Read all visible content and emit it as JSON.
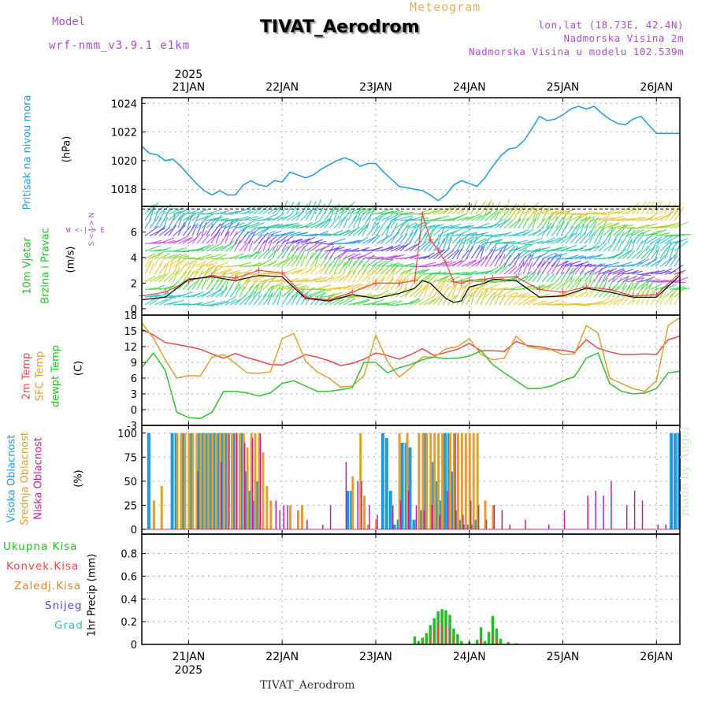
{
  "header": {
    "model_label": "Model",
    "model_name": "wrf-nmm_v3.9.1 e1km",
    "meteogram_label": "Meteogram",
    "title": "TIVAT_Aerodrom",
    "lonlat": "lon,lat (18.73E, 42.4N)",
    "elev": "Nadmorska Visina 2m",
    "elev_model": "Nadmorska Visina u modelu 102.539m"
  },
  "footer": {
    "title": "TIVAT_Aerodrom",
    "made_by": "made by Angel"
  },
  "days": [
    "21JAN",
    "22JAN",
    "23JAN",
    "24JAN",
    "25JAN",
    "26JAN"
  ],
  "year": "2025",
  "panel_labels": {
    "pressure": [
      "Pritisak na nivou mora",
      "(hPa)"
    ],
    "wind": [
      "10m Vjetar",
      "Brzina i Pravac",
      "(m/s)"
    ],
    "compass": "W <-|-> E",
    "compass_ns": "S <-|-> N",
    "temp": [
      "2m Temp",
      "SFC Temp",
      "dewpt Temp",
      "(C)"
    ],
    "cloud": [
      "Visoka Oblacnost",
      "Srednja Oblacnost",
      "Niska Oblacnost",
      "(%)"
    ],
    "precip_unit": "1hr Precip (mm)",
    "precip_legend": [
      "Ukupna Kisa",
      "Konvek.Kisa",
      "Zaledj.Kisa",
      "Snijeg",
      "Grad"
    ]
  },
  "colors": {
    "pressure": "#1e9be0",
    "temp2m": "#e84848",
    "sfc": "#e0a030",
    "dewpt": "#30c030",
    "cloud_high": "#1e9be0",
    "cloud_mid": "#e0a030",
    "cloud_low": "#c020a0",
    "rain_total": "#22c022",
    "rain_conv": "#e84848",
    "rain_frz": "#f07a2a",
    "snow": "#4a4ae0",
    "hail": "#30c0c0",
    "label_purple": "#b04bd6"
  },
  "chart_data": [
    {
      "type": "line",
      "name": "pressure",
      "ylabel": "(hPa)",
      "ylim": [
        1016.8,
        1024.4
      ],
      "yticks": [
        1018,
        1020,
        1022,
        1024
      ],
      "xlim": [
        0,
        138
      ],
      "x_unit": "hours from 2025-01-20 12 UTC",
      "series": [
        {
          "name": "Pritisak na nivou mora",
          "x": [
            0,
            2,
            4,
            6,
            8,
            10,
            12,
            14,
            16,
            18,
            20,
            22,
            24,
            26,
            28,
            30,
            32,
            34,
            36,
            38,
            40,
            42,
            44,
            46,
            48,
            50,
            52,
            54,
            56,
            58,
            60,
            62,
            64,
            66,
            68,
            70,
            72,
            74,
            76,
            78,
            80,
            82,
            84,
            86,
            88,
            90,
            92,
            94,
            96,
            98,
            100,
            102,
            104,
            106,
            108,
            110,
            112,
            114,
            116,
            118,
            120,
            122,
            124,
            126,
            128,
            130,
            132,
            134,
            136,
            138
          ],
          "values": [
            1021.0,
            1020.5,
            1020.4,
            1020.0,
            1020.1,
            1019.6,
            1019.0,
            1018.4,
            1017.9,
            1017.6,
            1017.9,
            1017.6,
            1017.6,
            1018.3,
            1018.6,
            1018.3,
            1018.2,
            1018.6,
            1018.5,
            1019.2,
            1019.0,
            1018.8,
            1019.0,
            1019.4,
            1019.7,
            1020.0,
            1020.2,
            1020.0,
            1019.6,
            1019.8,
            1019.8,
            1019.2,
            1018.7,
            1018.2,
            1018.1,
            1018.0,
            1017.9,
            1017.6,
            1017.2,
            1017.6,
            1018.3,
            1018.6,
            1018.4,
            1018.2,
            1018.8,
            1019.6,
            1020.3,
            1020.8,
            1020.9,
            1021.4,
            1022.2,
            1023.1,
            1022.8,
            1022.9,
            1023.2,
            1023.6,
            1023.8,
            1023.6,
            1023.8,
            1023.3,
            1022.9,
            1022.6,
            1022.5,
            1022.9,
            1023.1,
            1022.5,
            1021.9,
            1021.9,
            1021.9,
            1021.9
          ]
        }
      ]
    },
    {
      "type": "line",
      "name": "wind",
      "ylabel": "(m/s)",
      "ylim": [
        -0.5,
        8.0
      ],
      "yticks": [
        0,
        2,
        4,
        6
      ],
      "xlim": [
        0,
        138
      ],
      "series": [
        {
          "name": "speed",
          "x": [
            0,
            6,
            12,
            18,
            24,
            30,
            36,
            42,
            48,
            54,
            60,
            66,
            70,
            72,
            74,
            76,
            78,
            80,
            82,
            84,
            88,
            90,
            96,
            102,
            108,
            114,
            120,
            126,
            132,
            138
          ],
          "values": [
            0.7,
            0.9,
            2.3,
            2.5,
            2.2,
            2.6,
            2.5,
            0.8,
            0.6,
            1.1,
            0.8,
            1.2,
            1.6,
            2.2,
            2.0,
            1.4,
            0.8,
            0.5,
            0.6,
            1.7,
            2.0,
            2.3,
            2.2,
            0.9,
            1.0,
            1.6,
            1.3,
            0.9,
            0.9,
            2.6
          ]
        },
        {
          "name": "gust",
          "x": [
            0,
            6,
            12,
            18,
            24,
            30,
            36,
            42,
            48,
            54,
            60,
            66,
            70,
            72,
            74,
            76,
            78,
            80,
            82,
            84,
            88,
            90,
            96,
            102,
            108,
            114,
            120,
            126,
            132,
            138
          ],
          "values": [
            1.0,
            1.3,
            2.2,
            2.6,
            2.4,
            3.0,
            2.8,
            0.9,
            0.7,
            1.3,
            2.0,
            2.0,
            2.2,
            7.4,
            5.4,
            4.6,
            3.6,
            2.1,
            2.0,
            2.2,
            2.3,
            2.4,
            2.5,
            1.5,
            1.3,
            1.7,
            1.5,
            1.0,
            1.1,
            2.8
          ]
        }
      ]
    },
    {
      "type": "line",
      "name": "temperature",
      "ylabel": "(C)",
      "ylim": [
        -3,
        18
      ],
      "yticks": [
        -3,
        0,
        3,
        6,
        9,
        12,
        15,
        18
      ],
      "xlim": [
        0,
        138
      ],
      "series": [
        {
          "name": "2m Temp",
          "x": [
            0,
            3,
            6,
            9,
            12,
            15,
            18,
            21,
            24,
            27,
            30,
            33,
            36,
            39,
            42,
            45,
            48,
            51,
            54,
            57,
            60,
            63,
            66,
            69,
            72,
            75,
            78,
            81,
            84,
            87,
            90,
            93,
            96,
            99,
            102,
            105,
            108,
            111,
            114,
            117,
            120,
            123,
            126,
            129,
            132,
            135,
            138
          ],
          "values": [
            15.3,
            14.2,
            12.8,
            12.4,
            12.0,
            11.5,
            10.6,
            9.8,
            10.7,
            9.9,
            9.3,
            8.6,
            8.5,
            9.4,
            10.5,
            10.0,
            9.3,
            8.4,
            8.8,
            9.6,
            10.8,
            10.3,
            9.6,
            10.5,
            11.6,
            10.3,
            10.9,
            11.5,
            12.6,
            11.2,
            11.2,
            11.1,
            13.0,
            12.2,
            12.0,
            11.5,
            11.3,
            10.9,
            13.3,
            11.7,
            11.0,
            10.5,
            10.5,
            10.6,
            10.5,
            13.3,
            14.0
          ]
        },
        {
          "name": "SFC Temp",
          "x": [
            0,
            3,
            6,
            9,
            12,
            15,
            18,
            21,
            24,
            27,
            30,
            33,
            36,
            39,
            42,
            45,
            48,
            51,
            54,
            57,
            60,
            63,
            66,
            69,
            72,
            75,
            78,
            81,
            84,
            87,
            90,
            93,
            96,
            99,
            102,
            105,
            108,
            111,
            114,
            117,
            120,
            123,
            126,
            129,
            132,
            135,
            138
          ],
          "values": [
            16.5,
            13.6,
            9.5,
            6.0,
            6.5,
            6.4,
            10.0,
            10.5,
            8.8,
            7.0,
            6.9,
            7.2,
            13.5,
            14.5,
            9.2,
            7.2,
            6.0,
            4.3,
            4.5,
            6.5,
            14.2,
            9.2,
            6.2,
            8.0,
            10.0,
            10.0,
            11.6,
            12.0,
            13.5,
            10.5,
            9.5,
            9.8,
            14.0,
            12.0,
            11.6,
            11.4,
            10.5,
            10.6,
            16.0,
            14.6,
            6.0,
            5.0,
            4.0,
            3.5,
            5.5,
            16.0,
            17.5
          ]
        },
        {
          "name": "dewpt Temp",
          "x": [
            0,
            3,
            6,
            9,
            12,
            15,
            18,
            21,
            24,
            27,
            30,
            33,
            36,
            39,
            42,
            45,
            48,
            51,
            54,
            57,
            60,
            63,
            66,
            69,
            72,
            75,
            78,
            81,
            84,
            87,
            90,
            93,
            96,
            99,
            102,
            105,
            108,
            111,
            114,
            117,
            120,
            123,
            126,
            129,
            132,
            135,
            138
          ],
          "values": [
            8.0,
            10.8,
            7.5,
            -0.5,
            -1.5,
            -1.7,
            -0.5,
            3.5,
            3.5,
            3.2,
            2.6,
            3.2,
            5.0,
            5.5,
            4.5,
            3.5,
            3.5,
            3.8,
            4.2,
            9.0,
            9.0,
            7.0,
            8.0,
            8.6,
            9.5,
            10.0,
            9.7,
            9.8,
            10.2,
            11.2,
            8.6,
            7.0,
            5.5,
            4.0,
            4.0,
            4.5,
            5.5,
            6.3,
            9.8,
            10.8,
            5.0,
            3.5,
            3.0,
            3.2,
            4.0,
            7.0,
            7.3
          ]
        }
      ]
    },
    {
      "type": "bar",
      "name": "cloud cover",
      "ylabel": "(%)",
      "ylim": [
        -5,
        108
      ],
      "yticks": [
        0,
        25,
        50,
        75,
        100
      ],
      "xlim": [
        0,
        138
      ],
      "series": [
        {
          "name": "Visoka Oblacnost",
          "x": [
            2,
            8,
            9,
            11,
            13,
            15,
            16,
            17,
            18,
            19,
            20,
            21,
            22,
            24,
            26,
            27,
            28,
            29,
            30,
            53,
            54,
            62,
            63,
            64,
            65,
            66,
            67,
            68,
            69,
            70,
            72,
            73,
            75,
            76,
            77,
            78,
            79,
            80,
            81,
            82,
            83,
            84,
            85,
            86,
            136,
            137,
            138
          ],
          "values": [
            100,
            100,
            100,
            100,
            100,
            100,
            100,
            100,
            100,
            100,
            100,
            100,
            100,
            100,
            100,
            60,
            40,
            30,
            50,
            40,
            40,
            100,
            95,
            40,
            5,
            10,
            90,
            90,
            85,
            10,
            20,
            100,
            70,
            50,
            30,
            100,
            100,
            60,
            20,
            10,
            5,
            5,
            5,
            10,
            100,
            100,
            100
          ]
        },
        {
          "name": "Srednja Oblacnost",
          "x": [
            3,
            5,
            9,
            10,
            11,
            12,
            13,
            14,
            15,
            16,
            17,
            18,
            19,
            20,
            21,
            22,
            23,
            24,
            25,
            26,
            27,
            28,
            29,
            30,
            31,
            32,
            33,
            38,
            40,
            41,
            54,
            56,
            57,
            58,
            60,
            66,
            68,
            71,
            72,
            73,
            74,
            75,
            76,
            77,
            79,
            80,
            81,
            82,
            83,
            84,
            85,
            86,
            88,
            90
          ],
          "values": [
            30,
            45,
            100,
            100,
            100,
            100,
            100,
            100,
            100,
            100,
            100,
            100,
            100,
            100,
            100,
            100,
            100,
            100,
            100,
            100,
            85,
            100,
            100,
            100,
            80,
            45,
            30,
            25,
            20,
            25,
            55,
            100,
            35,
            5,
            10,
            100,
            100,
            100,
            100,
            100,
            100,
            100,
            100,
            100,
            100,
            100,
            100,
            100,
            100,
            100,
            100,
            100,
            30,
            25
          ]
        },
        {
          "name": "Niska Oblacnost",
          "x": [
            14,
            20,
            22,
            24,
            26,
            28,
            30,
            34,
            35,
            36,
            37,
            42,
            46,
            48,
            52,
            55,
            56,
            58,
            60,
            64,
            66,
            68,
            70,
            72,
            74,
            76,
            78,
            80,
            82,
            84,
            86,
            88,
            90,
            92,
            94,
            98,
            104,
            108,
            114,
            116,
            118,
            120,
            124,
            126,
            128,
            132,
            134
          ],
          "values": [
            60,
            70,
            100,
            100,
            90,
            95,
            100,
            30,
            20,
            25,
            25,
            10,
            5,
            25,
            70,
            50,
            50,
            25,
            15,
            25,
            30,
            40,
            25,
            20,
            25,
            15,
            40,
            100,
            15,
            30,
            25,
            10,
            25,
            20,
            5,
            10,
            5,
            20,
            35,
            40,
            35,
            50,
            25,
            40,
            30,
            5,
            5
          ]
        }
      ]
    },
    {
      "type": "bar",
      "name": "precipitation",
      "ylabel": "1hr Precip (mm)",
      "ylim": [
        0,
        0.97
      ],
      "yticks": [
        0,
        0.2,
        0.4,
        0.6,
        0.8
      ],
      "xlim": [
        0,
        138
      ],
      "series": [
        {
          "name": "Ukupna Kisa",
          "x": [
            70,
            71,
            72,
            73,
            74,
            75,
            76,
            77,
            78,
            79,
            80,
            81,
            82,
            84,
            86,
            87,
            88,
            89,
            90,
            91,
            92,
            94,
            96
          ],
          "values": [
            0.07,
            0.03,
            0.06,
            0.1,
            0.17,
            0.23,
            0.29,
            0.31,
            0.3,
            0.26,
            0.14,
            0.09,
            0.03,
            0.02,
            0.04,
            0.15,
            0.03,
            0.11,
            0.25,
            0.14,
            0.05,
            0.02,
            0.01
          ]
        },
        {
          "name": "Konvek.Kisa",
          "x": [
            72,
            74,
            75,
            76,
            77,
            78,
            79,
            80,
            87,
            90,
            91
          ],
          "values": [
            0.02,
            0.06,
            0.13,
            0.18,
            0.19,
            0.16,
            0.14,
            0.06,
            0.05,
            0.1,
            0.05
          ]
        }
      ]
    }
  ]
}
